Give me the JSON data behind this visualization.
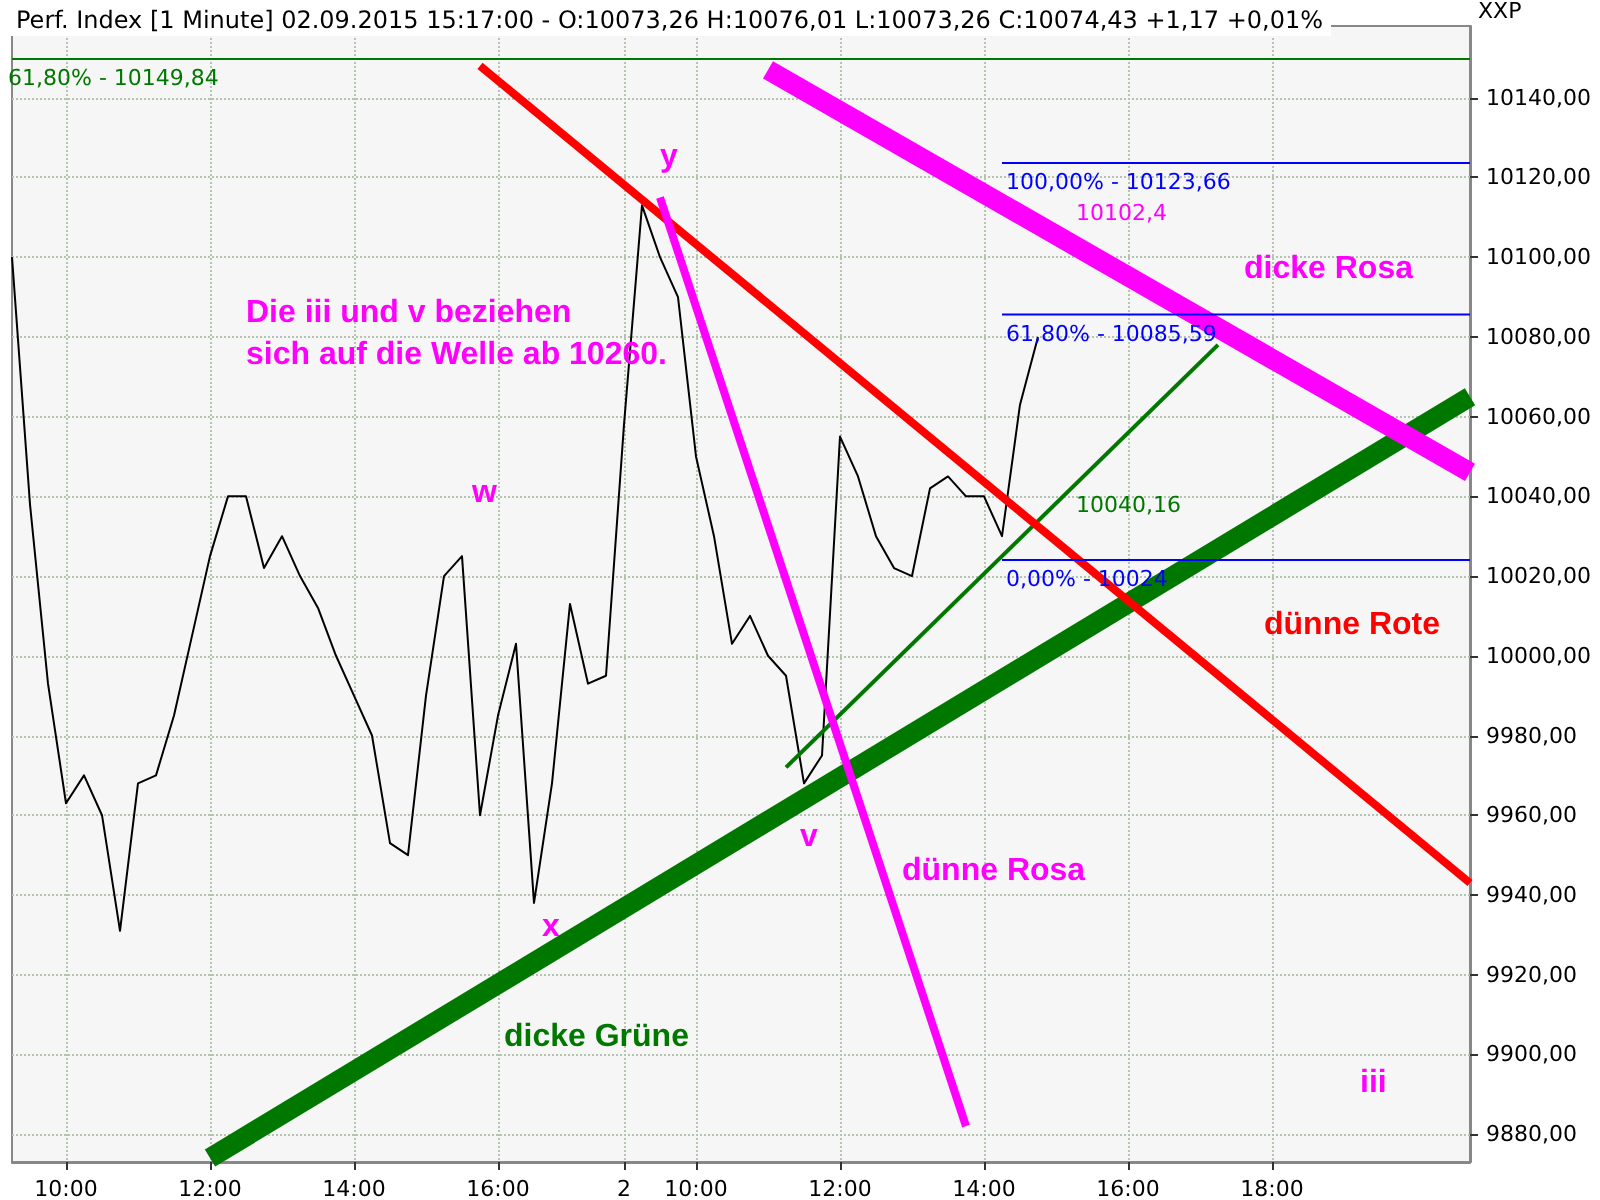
{
  "chart_data": {
    "type": "line",
    "title": "Perf. Index [1 Minute] 02.09.2015 15:17:00 - O:10073,26 H:10076,01 L:10073,26 C:10074,43 +1,17 +0,01%",
    "ylabel": "XXP",
    "categories": [
      null,
      null,
      null,
      "10:00",
      null,
      null,
      null,
      null,
      null,
      null,
      null,
      "12:00",
      null,
      null,
      null,
      null,
      null,
      null,
      null,
      "14:00",
      null,
      null,
      null,
      null,
      null,
      null,
      null,
      "16:00",
      null,
      null,
      null,
      null,
      null,
      null,
      "2",
      null,
      null,
      null,
      "10:00",
      null,
      null,
      null,
      null,
      null,
      null,
      null,
      "12:00",
      null,
      null,
      null,
      null,
      null,
      null,
      null,
      "14:00",
      null,
      null,
      null,
      null,
      null,
      null,
      null,
      "16:00",
      null,
      null,
      null,
      null,
      null,
      null,
      null,
      "18:00",
      null,
      null,
      null,
      null,
      null,
      null,
      null,
      null,
      null,
      null,
      null
    ],
    "ylim": [
      9873,
      10158
    ],
    "yticks": [
      {
        "value": 9880,
        "label": "9880,00"
      },
      {
        "value": 9900,
        "label": "9900,00"
      },
      {
        "value": 9920,
        "label": "9920,00"
      },
      {
        "value": 9940,
        "label": "9940,00"
      },
      {
        "value": 9960,
        "label": "9960,00"
      },
      {
        "value": 9980,
        "label": "9980,00"
      },
      {
        "value": 10000,
        "label": "10000,00"
      },
      {
        "value": 10020,
        "label": "10020,00"
      },
      {
        "value": 10040,
        "label": "10040,00"
      },
      {
        "value": 10060,
        "label": "10060,00"
      },
      {
        "value": 10080,
        "label": "10080,00"
      },
      {
        "value": 10100,
        "label": "10100,00"
      },
      {
        "value": 10120,
        "label": "10120,00"
      },
      {
        "value": 10140,
        "label": "10140,00"
      }
    ],
    "grid": true,
    "marker": "none",
    "line_style": "solid",
    "series": [
      {
        "color": "#000000",
        "values": [
          10100,
          10038,
          9993,
          9963,
          9970,
          9960,
          9931,
          9968,
          9970,
          9985,
          10005,
          10025,
          10040,
          10040,
          10022,
          10030,
          10020,
          10012,
          10000,
          9990,
          9980,
          9953,
          9950,
          9990,
          10020,
          10025,
          9960,
          9985,
          10003,
          9938,
          9968,
          10013,
          9993,
          9995,
          10058,
          10113,
          10100,
          10090,
          10050,
          10030,
          10003,
          10010,
          10000,
          9995,
          9968,
          9975,
          10055,
          10045,
          10030,
          10022,
          10020,
          10042,
          10045,
          10040,
          10040,
          10030,
          10063,
          10080,
          null,
          null,
          null,
          null,
          null,
          null,
          null,
          null,
          null,
          null,
          null,
          null,
          null,
          null,
          null,
          null,
          null,
          null,
          null,
          null,
          null,
          null,
          null,
          null
        ]
      },
      {
        "color": "#007800",
        "values": [
          null,
          null,
          null,
          null,
          null,
          null,
          null,
          null,
          null,
          null,
          null,
          9874,
          null,
          null,
          null,
          null,
          null,
          null,
          null,
          null,
          null,
          null,
          null,
          null,
          null,
          null,
          null,
          null,
          null,
          null,
          null,
          null,
          null,
          null,
          null,
          null,
          null,
          null,
          null,
          null,
          null,
          null,
          null,
          null,
          null,
          null,
          null,
          null,
          null,
          null,
          null,
          null,
          null,
          null,
          null,
          null,
          null,
          null,
          null,
          null,
          null,
          null,
          null,
          null,
          null,
          null,
          null,
          null,
          null,
          null,
          null,
          null,
          null,
          null,
          null,
          null,
          null,
          null,
          null,
          null,
          null,
          10065
        ]
      },
      {
        "color": "#007800",
        "values": [
          null,
          null,
          null,
          null,
          null,
          null,
          null,
          null,
          null,
          null,
          null,
          null,
          null,
          null,
          null,
          null,
          null,
          null,
          null,
          null,
          null,
          null,
          null,
          null,
          null,
          null,
          null,
          null,
          null,
          null,
          null,
          null,
          null,
          null,
          null,
          null,
          null,
          null,
          null,
          null,
          null,
          null,
          null,
          9972,
          null,
          null,
          null,
          null,
          null,
          null,
          null,
          null,
          null,
          null,
          null,
          null,
          null,
          null,
          null,
          null,
          null,
          null,
          null,
          null,
          null,
          null,
          null,
          10078,
          null,
          null,
          null,
          null,
          null,
          null,
          null,
          null,
          null,
          null,
          null,
          null,
          null,
          null
        ]
      },
      {
        "color": "#ff0000",
        "values": [
          null,
          null,
          null,
          null,
          null,
          null,
          null,
          null,
          null,
          null,
          null,
          null,
          null,
          null,
          null,
          null,
          null,
          null,
          null,
          null,
          null,
          null,
          null,
          null,
          null,
          null,
          10148,
          null,
          null,
          null,
          null,
          null,
          null,
          null,
          null,
          null,
          null,
          null,
          null,
          null,
          null,
          null,
          null,
          null,
          null,
          null,
          null,
          null,
          null,
          null,
          null,
          null,
          null,
          null,
          null,
          null,
          null,
          null,
          null,
          null,
          null,
          null,
          null,
          null,
          null,
          null,
          null,
          null,
          null,
          null,
          null,
          null,
          null,
          null,
          null,
          null,
          null,
          null,
          null,
          null,
          null,
          9943
        ]
      },
      {
        "color": "#ff00ff",
        "values": [
          null,
          null,
          null,
          null,
          null,
          null,
          null,
          null,
          null,
          null,
          null,
          null,
          null,
          null,
          null,
          null,
          null,
          null,
          null,
          null,
          null,
          null,
          null,
          null,
          null,
          null,
          null,
          null,
          null,
          null,
          null,
          null,
          null,
          null,
          null,
          null,
          null,
          null,
          null,
          null,
          null,
          null,
          10147,
          null,
          null,
          null,
          null,
          null,
          null,
          null,
          null,
          null,
          null,
          null,
          null,
          null,
          null,
          null,
          null,
          null,
          null,
          null,
          null,
          null,
          null,
          null,
          null,
          null,
          null,
          null,
          null,
          null,
          null,
          null,
          null,
          null,
          null,
          null,
          null,
          null,
          null,
          10046
        ]
      },
      {
        "color": "#ff00ff",
        "values": [
          null,
          null,
          null,
          null,
          null,
          null,
          null,
          null,
          null,
          null,
          null,
          null,
          null,
          null,
          null,
          null,
          null,
          null,
          null,
          null,
          null,
          null,
          null,
          null,
          null,
          null,
          null,
          null,
          null,
          null,
          null,
          null,
          null,
          null,
          null,
          null,
          10115,
          null,
          null,
          null,
          null,
          null,
          null,
          null,
          null,
          null,
          null,
          null,
          null,
          null,
          null,
          null,
          null,
          9882,
          null,
          null,
          null,
          null,
          null,
          null,
          null,
          null,
          null,
          null,
          null,
          null,
          null,
          null,
          null,
          null,
          null,
          null,
          null,
          null,
          null,
          null,
          null,
          null,
          null,
          null,
          null,
          null
        ]
      },
      {
        "color": "#0000ff",
        "values": [
          null,
          null,
          null,
          null,
          null,
          null,
          null,
          null,
          null,
          null,
          null,
          null,
          null,
          null,
          null,
          null,
          null,
          null,
          null,
          null,
          null,
          null,
          null,
          null,
          null,
          null,
          null,
          null,
          null,
          null,
          null,
          null,
          null,
          null,
          null,
          null,
          null,
          null,
          null,
          null,
          null,
          null,
          null,
          null,
          null,
          null,
          null,
          null,
          null,
          null,
          null,
          null,
          null,
          null,
          null,
          10123.66,
          null,
          null,
          null,
          null,
          null,
          null,
          null,
          null,
          null,
          null,
          null,
          null,
          null,
          null,
          null,
          null,
          null,
          null,
          null,
          null,
          null,
          null,
          null,
          null,
          null,
          10123.66
        ]
      },
      {
        "color": "#0000ff",
        "values": [
          null,
          null,
          null,
          null,
          null,
          null,
          null,
          null,
          null,
          null,
          null,
          null,
          null,
          null,
          null,
          null,
          null,
          null,
          null,
          null,
          null,
          null,
          null,
          null,
          null,
          null,
          null,
          null,
          null,
          null,
          null,
          null,
          null,
          null,
          null,
          null,
          null,
          null,
          null,
          null,
          null,
          null,
          null,
          null,
          null,
          null,
          null,
          null,
          null,
          null,
          null,
          null,
          null,
          null,
          null,
          10085.59,
          null,
          null,
          null,
          null,
          null,
          null,
          null,
          null,
          null,
          null,
          null,
          null,
          null,
          null,
          null,
          null,
          null,
          null,
          null,
          null,
          null,
          null,
          null,
          null,
          null,
          10085.59
        ]
      },
      {
        "color": "#0000ff",
        "values": [
          null,
          null,
          null,
          null,
          null,
          null,
          null,
          null,
          null,
          null,
          null,
          null,
          null,
          null,
          null,
          null,
          null,
          null,
          null,
          null,
          null,
          null,
          null,
          null,
          null,
          null,
          null,
          null,
          null,
          null,
          null,
          null,
          null,
          null,
          null,
          null,
          null,
          null,
          null,
          null,
          null,
          null,
          null,
          null,
          null,
          null,
          null,
          null,
          null,
          null,
          null,
          null,
          null,
          null,
          null,
          10024,
          null,
          null,
          null,
          null,
          null,
          null,
          null,
          null,
          null,
          null,
          null,
          null,
          null,
          null,
          null,
          null,
          null,
          null,
          null,
          null,
          null,
          null,
          null,
          null,
          null,
          10024
        ]
      }
    ],
    "ref_lines": [
      {
        "axis": "y",
        "value": 10149.84,
        "color": "#007800"
      }
    ],
    "annotations": [
      {
        "text": "61,80% - 10149,84",
        "y": 10149.84
      },
      {
        "text": "100,00% - 10123,66",
        "y": 10123.66
      },
      {
        "text": "61,80% - 10085,59",
        "y": 10085.59
      },
      {
        "text": "0,00% - 10024",
        "y": 10024
      },
      "10102,4",
      "10040,16",
      "y",
      "w",
      "x",
      "v",
      "iii",
      "Die iii und v beziehen\nsich auf die Welle ab 10260.",
      "dicke Rosa",
      "dicke Grüne",
      "dünne Rote",
      "dünne Rosa"
    ]
  }
}
